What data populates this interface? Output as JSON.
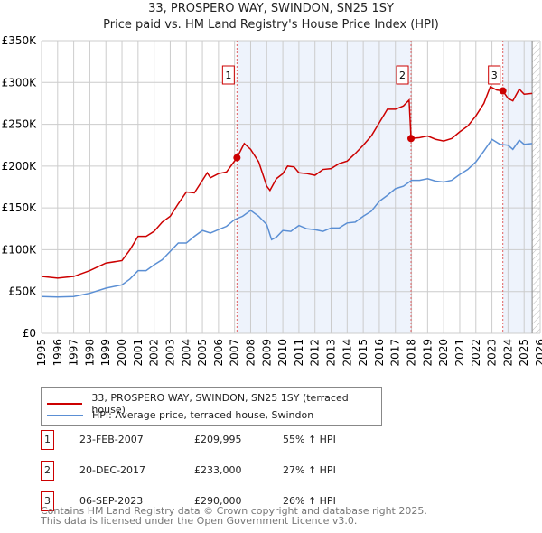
{
  "title": "33, PROSPERO WAY, SWINDON, SN25 1SY",
  "subtitle": "Price paid vs. HM Land Registry's House Price Index (HPI)",
  "chart_data": {
    "type": "line",
    "title": "33, PROSPERO WAY, SWINDON, SN25 1SY",
    "subtitle": "Price paid vs. HM Land Registry's House Price Index (HPI)",
    "xlim": [
      1995,
      2026
    ],
    "ylim": [
      0,
      350000
    ],
    "x_ticks": [
      "1995",
      "1996",
      "1997",
      "1998",
      "1999",
      "2000",
      "2001",
      "2002",
      "2003",
      "2004",
      "2005",
      "2006",
      "2007",
      "2008",
      "2009",
      "2010",
      "2011",
      "2012",
      "2013",
      "2014",
      "2015",
      "2016",
      "2017",
      "2018",
      "2019",
      "2020",
      "2021",
      "2022",
      "2023",
      "2024",
      "2025",
      "2026"
    ],
    "y_ticks": [
      {
        "v": 0,
        "label": "£0"
      },
      {
        "v": 50000,
        "label": "£50K"
      },
      {
        "v": 100000,
        "label": "£100K"
      },
      {
        "v": 150000,
        "label": "£150K"
      },
      {
        "v": 200000,
        "label": "£200K"
      },
      {
        "v": 250000,
        "label": "£250K"
      },
      {
        "v": 300000,
        "label": "£300K"
      },
      {
        "v": 350000,
        "label": "£350K"
      }
    ],
    "grid": true,
    "legend_position": "below",
    "series": [
      {
        "name": "33, PROSPERO WAY, SWINDON, SN25 1SY (terraced house)",
        "color": "#cc0000",
        "x": [
          1995,
          1996,
          1997,
          1998,
          1999,
          2000,
          2000.5,
          2001,
          2001.5,
          2002,
          2002.5,
          2003,
          2003.5,
          2004,
          2004.5,
          2005,
          2005.3,
          2005.5,
          2006,
          2006.5,
          2007.15,
          2007.6,
          2008,
          2008.5,
          2009,
          2009.2,
          2009.6,
          2010,
          2010.3,
          2010.7,
          2011,
          2011.5,
          2012,
          2012.5,
          2013,
          2013.5,
          2014,
          2014.5,
          2015,
          2015.5,
          2016,
          2016.5,
          2017,
          2017.5,
          2017.85,
          2017.97,
          2018.5,
          2019,
          2019.5,
          2020,
          2020.5,
          2021,
          2021.5,
          2022,
          2022.5,
          2022.9,
          2023.3,
          2023.68,
          2024,
          2024.3,
          2024.7,
          2025,
          2025.5
        ],
        "y": [
          68000,
          66000,
          68000,
          75000,
          84000,
          87000,
          100000,
          116000,
          116000,
          122000,
          133000,
          140000,
          155000,
          169000,
          168000,
          183000,
          192000,
          186000,
          191000,
          193000,
          209995,
          227000,
          220000,
          205000,
          176000,
          171000,
          185000,
          191000,
          200000,
          199000,
          192000,
          191000,
          189000,
          196000,
          197000,
          203000,
          206000,
          215000,
          225000,
          236000,
          252000,
          268000,
          268000,
          272000,
          279000,
          233000,
          234000,
          236000,
          232000,
          230000,
          233000,
          241000,
          248000,
          260000,
          275000,
          295000,
          291000,
          290000,
          281000,
          278000,
          292000,
          286000,
          287000
        ]
      },
      {
        "name": "HPI: Average price, terraced house, Swindon",
        "color": "#5b8fd4",
        "x": [
          1995,
          1996,
          1997,
          1998,
          1999,
          2000,
          2000.5,
          2001,
          2001.5,
          2002,
          2002.5,
          2003,
          2003.5,
          2004,
          2004.5,
          2005,
          2005.5,
          2006,
          2006.5,
          2007,
          2007.5,
          2008,
          2008.5,
          2009,
          2009.3,
          2009.6,
          2010,
          2010.5,
          2011,
          2011.5,
          2012,
          2012.5,
          2013,
          2013.5,
          2014,
          2014.5,
          2015,
          2015.5,
          2016,
          2016.5,
          2017,
          2017.5,
          2018,
          2018.5,
          2019,
          2019.5,
          2020,
          2020.5,
          2021,
          2021.5,
          2022,
          2022.5,
          2023,
          2023.5,
          2024,
          2024.3,
          2024.7,
          2025,
          2025.5
        ],
        "y": [
          44000,
          43500,
          44000,
          48000,
          54000,
          58000,
          65000,
          75000,
          75000,
          82000,
          88000,
          98000,
          108000,
          108000,
          116000,
          123000,
          120000,
          124000,
          128000,
          136000,
          140000,
          147000,
          140000,
          130000,
          112000,
          115000,
          123000,
          122000,
          129000,
          125000,
          124000,
          122000,
          126000,
          126000,
          132000,
          133000,
          140000,
          146000,
          158000,
          165000,
          173000,
          176000,
          183000,
          183000,
          185000,
          182000,
          181000,
          183000,
          190000,
          196000,
          205000,
          218000,
          232000,
          226000,
          225000,
          220000,
          231000,
          226000,
          227000
        ]
      }
    ],
    "sales": [
      {
        "n": "1",
        "x": 2007.15,
        "y": 209995,
        "date": "23-FEB-2007",
        "price": "£209,995",
        "hpi": "55% ↑ HPI"
      },
      {
        "n": "2",
        "x": 2017.97,
        "y": 233000,
        "date": "20-DEC-2017",
        "price": "£233,000",
        "hpi": "27% ↑ HPI"
      },
      {
        "n": "3",
        "x": 2023.68,
        "y": 290000,
        "date": "06-SEP-2023",
        "price": "£290,000",
        "hpi": "26% ↑ HPI"
      }
    ],
    "shaded": [
      [
        2007.15,
        2017.97
      ],
      [
        2023.68,
        2025.5
      ]
    ],
    "forecast_hatch": [
      2025.5,
      2026
    ]
  },
  "footer": [
    "Contains HM Land Registry data © Crown copyright and database right 2025.",
    "This data is licensed under the Open Government Licence v3.0."
  ]
}
